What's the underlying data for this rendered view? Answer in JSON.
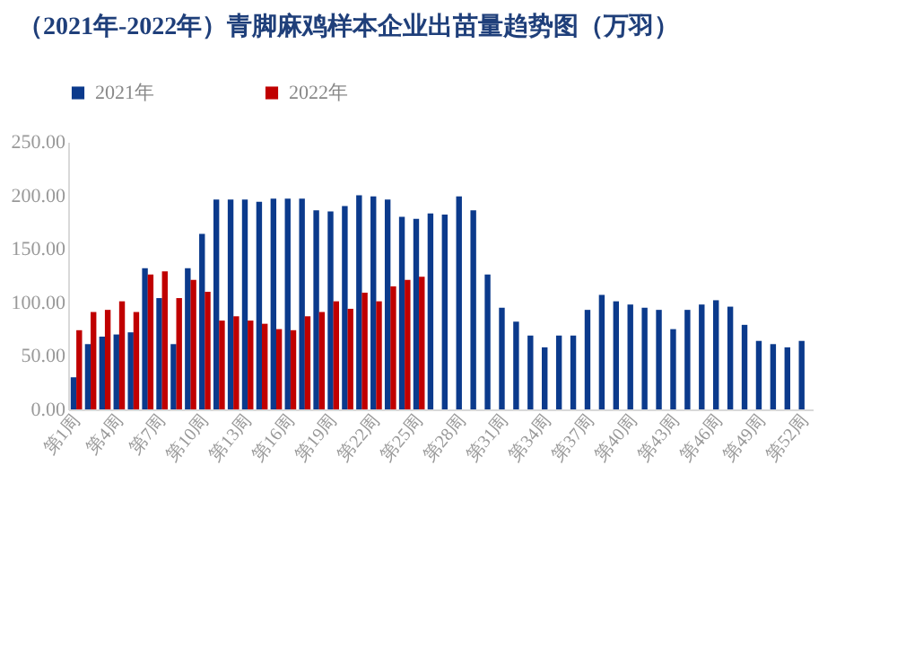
{
  "chart_data": {
    "type": "bar",
    "title": "（2021年-2022年）青脚麻鸡样本企业出苗量趋势图（万羽）",
    "categories": [
      "第1周",
      null,
      null,
      "第4周",
      null,
      null,
      "第7周",
      null,
      null,
      "第10周",
      null,
      null,
      "第13周",
      null,
      null,
      "第16周",
      null,
      null,
      "第19周",
      null,
      null,
      "第22周",
      null,
      null,
      "第25周",
      null,
      null,
      "第28周",
      null,
      null,
      "第31周",
      null,
      null,
      "第34周",
      null,
      null,
      "第37周",
      null,
      null,
      "第40周",
      null,
      null,
      "第43周",
      null,
      null,
      "第46周",
      null,
      null,
      "第49周",
      null,
      null,
      "第52周"
    ],
    "series": [
      {
        "name": "2021年",
        "color": "#0b3a8c",
        "values": [
          30,
          61,
          68,
          70,
          72,
          132,
          104,
          61,
          132,
          164,
          196,
          196,
          196,
          194,
          197,
          197,
          197,
          186,
          185,
          190,
          200,
          199,
          196,
          180,
          178,
          183,
          182,
          199,
          186,
          126,
          95,
          82,
          69,
          58,
          69,
          69,
          93,
          107,
          101,
          98,
          95,
          93,
          75,
          93,
          98,
          102,
          96,
          79,
          64,
          61,
          58,
          64
        ]
      },
      {
        "name": "2022年",
        "color": "#c00000",
        "values": [
          74,
          91,
          93,
          101,
          91,
          126,
          129,
          104,
          121,
          110,
          83,
          87,
          83,
          80,
          75,
          74,
          87,
          91,
          101,
          94,
          109,
          101,
          115,
          121,
          124,
          null,
          null,
          null,
          null,
          null,
          null,
          null,
          null,
          null,
          null,
          null,
          null,
          null,
          null,
          null,
          null,
          null,
          null,
          null,
          null,
          null,
          null,
          null,
          null,
          null,
          null,
          null
        ]
      }
    ],
    "ylim": [
      0,
      250
    ],
    "yticks": [
      {
        "value": 0,
        "label": "0.00"
      },
      {
        "value": 50,
        "label": "50.00"
      },
      {
        "value": 100,
        "label": "100.00"
      },
      {
        "value": 150,
        "label": "150.00"
      },
      {
        "value": 200,
        "label": "200.00"
      },
      {
        "value": 250,
        "label": "250.00"
      }
    ],
    "legend": "top"
  }
}
